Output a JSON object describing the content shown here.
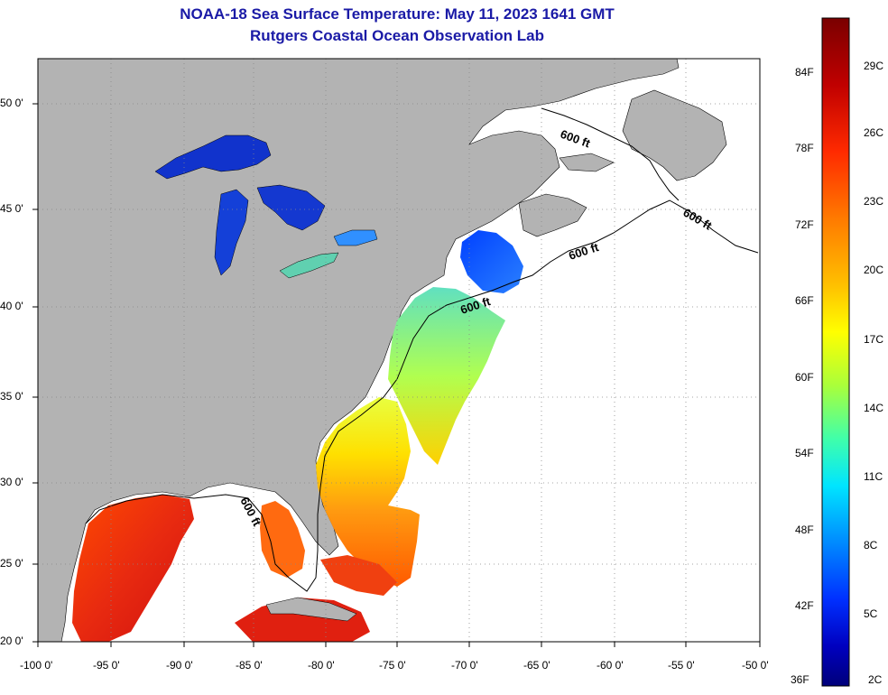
{
  "title": {
    "line1": "NOAA-18 Sea Surface Temperature:  May 11, 2023 1641 GMT",
    "line2": "Rutgers Coastal Ocean Observation Lab"
  },
  "map": {
    "lat_labels": [
      "50 0'",
      "45 0'",
      "40 0'",
      "35 0'",
      "30 0'",
      "25 0'",
      "20 0'"
    ],
    "lon_labels": [
      "-100 0'",
      "-95 0'",
      "-90 0'",
      "-85 0'",
      "-80 0'",
      "-75 0'",
      "-70 0'",
      "-65 0'",
      "-60 0'",
      "-55 0'",
      "-50 0'"
    ],
    "contour_label": "600 ft",
    "colors": {
      "land": "#b3b3b3",
      "ocean_nodata": "#ffffff",
      "grid": "#888888"
    }
  },
  "colorbar": {
    "fahrenheit": [
      "84F",
      "78F",
      "72F",
      "66F",
      "60F",
      "54F",
      "48F",
      "42F",
      "36F"
    ],
    "celsius": [
      "29C",
      "26C",
      "23C",
      "20C",
      "17C",
      "14C",
      "11C",
      "8C",
      "5C",
      "2C"
    ],
    "gradient_stops": [
      "#7a0000",
      "#c00000",
      "#ff2a00",
      "#ff7a00",
      "#ffc000",
      "#ffff00",
      "#aaff3a",
      "#40ffaa",
      "#00e5ff",
      "#0090ff",
      "#0030ff",
      "#0000c0",
      "#00007a"
    ]
  }
}
